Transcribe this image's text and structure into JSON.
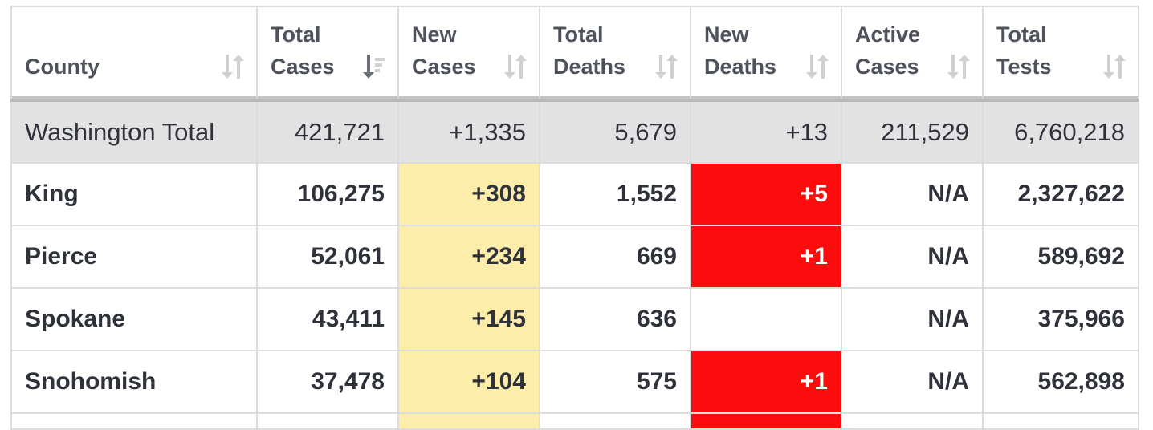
{
  "columns": [
    {
      "line1": "",
      "line2": "County",
      "sort": "unsorted"
    },
    {
      "line1": "Total",
      "line2": "Cases",
      "sort": "descending"
    },
    {
      "line1": "New",
      "line2": "Cases",
      "sort": "unsorted"
    },
    {
      "line1": "Total",
      "line2": "Deaths",
      "sort": "unsorted"
    },
    {
      "line1": "New",
      "line2": "Deaths",
      "sort": "unsorted"
    },
    {
      "line1": "Active",
      "line2": "Cases",
      "sort": "unsorted"
    },
    {
      "line1": "Total",
      "line2": "Tests",
      "sort": "unsorted"
    }
  ],
  "total": {
    "county": "Washington Total",
    "total_cases": "421,721",
    "new_cases": "+1,335",
    "total_deaths": "5,679",
    "new_deaths": "+13",
    "active_cases": "211,529",
    "total_tests": "6,760,218"
  },
  "rows": [
    {
      "county": "King",
      "total_cases": "106,275",
      "new_cases": "+308",
      "total_deaths": "1,552",
      "new_deaths": "+5",
      "active_cases": "N/A",
      "total_tests": "2,327,622"
    },
    {
      "county": "Pierce",
      "total_cases": "52,061",
      "new_cases": "+234",
      "total_deaths": "669",
      "new_deaths": "+1",
      "active_cases": "N/A",
      "total_tests": "589,692"
    },
    {
      "county": "Spokane",
      "total_cases": "43,411",
      "new_cases": "+145",
      "total_deaths": "636",
      "new_deaths": "",
      "active_cases": "N/A",
      "total_tests": "375,966"
    },
    {
      "county": "Snohomish",
      "total_cases": "37,478",
      "new_cases": "+104",
      "total_deaths": "575",
      "new_deaths": "+1",
      "active_cases": "N/A",
      "total_tests": "562,898"
    }
  ],
  "colors": {
    "new_cases_highlight": "#fdedab",
    "new_deaths_highlight": "#fc0c0c",
    "total_row_bg": "#e2e2e2"
  },
  "icons": {
    "unsorted": "sort-arrows-icon",
    "descending": "sort-descending-icon"
  }
}
